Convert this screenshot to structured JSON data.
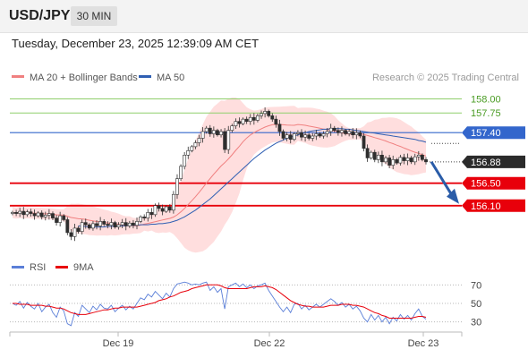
{
  "header": {
    "symbol": "USD/JPY",
    "timeframe": "30 MIN"
  },
  "timestamp": "Tuesday, December 23, 2025 12:39:09 AM CET",
  "credit": "Research © 2025 Trading Central",
  "colors": {
    "candle_up": "#2e2e2e",
    "candle_down": "#2e2e2e",
    "ma20": "#f08080",
    "bollinger_fill": "#ffd6d6",
    "ma50": "#2f5fb3",
    "resistance_green": "#8fcf6b",
    "resistance_blue": "#3366cc",
    "support_red": "#e8000b",
    "arrow": "#2a5ca8",
    "rsi": "#5b7fd8",
    "rsi_ma": "#e8000b",
    "current_price_bg": "#2b2b2b"
  },
  "chart_data": [
    {
      "type": "candlestick",
      "legend": [
        {
          "name": "MA 20 + Bollinger Bands",
          "color": "#f08080"
        },
        {
          "name": "MA 50",
          "color": "#2f5fb3"
        }
      ],
      "x_ticks": [
        "Dec 19",
        "Dec 22",
        "Dec 23"
      ],
      "ylim": [
        155.3,
        158.2
      ],
      "levels": [
        {
          "value": 158.0,
          "label": "158.00",
          "style": "green-line"
        },
        {
          "value": 157.75,
          "label": "157.75",
          "style": "green-line"
        },
        {
          "value": 157.4,
          "label": "157.40",
          "style": "blue-tag"
        },
        {
          "value": 156.88,
          "label": "156.88",
          "style": "current-price-tag"
        },
        {
          "value": 156.5,
          "label": "156.50",
          "style": "red-tag"
        },
        {
          "value": 156.1,
          "label": "156.10",
          "style": "red-tag"
        }
      ],
      "current_price": 156.88,
      "forecast": {
        "direction": "down",
        "from": 156.85,
        "to": 156.1
      },
      "closes": [
        155.98,
        155.96,
        156.0,
        155.94,
        155.99,
        155.96,
        155.92,
        155.97,
        155.9,
        155.93,
        155.96,
        155.88,
        155.8,
        155.92,
        155.85,
        155.62,
        155.55,
        155.7,
        155.64,
        155.8,
        155.76,
        155.7,
        155.78,
        155.74,
        155.82,
        155.77,
        155.75,
        155.8,
        155.72,
        155.76,
        155.8,
        155.74,
        155.79,
        155.75,
        155.82,
        155.9,
        155.88,
        155.98,
        155.94,
        156.1,
        156.05,
        156.0,
        156.08,
        156.02,
        156.3,
        156.58,
        156.8,
        157.0,
        157.08,
        157.15,
        157.22,
        157.3,
        157.42,
        157.48,
        157.38,
        157.44,
        157.36,
        157.42,
        157.1,
        157.44,
        157.52,
        157.6,
        157.56,
        157.64,
        157.6,
        157.67,
        157.62,
        157.7,
        157.74,
        157.78,
        157.7,
        157.64,
        157.55,
        157.42,
        157.3,
        157.36,
        157.28,
        157.38,
        157.4,
        157.32,
        157.36,
        157.3,
        157.34,
        157.38,
        157.34,
        157.38,
        157.42,
        157.48,
        157.44,
        157.4,
        157.44,
        157.38,
        157.42,
        157.36,
        157.4,
        157.34,
        157.12,
        156.95,
        157.05,
        156.92,
        157.0,
        156.88,
        156.95,
        156.82,
        156.92,
        156.86,
        156.96,
        156.9,
        156.95,
        156.88,
        156.97,
        157.0,
        156.92,
        156.88
      ],
      "ma50": [
        155.74,
        155.73,
        155.73,
        155.72,
        155.72,
        155.72,
        155.72,
        155.72,
        155.73,
        155.73,
        155.73,
        155.74,
        155.74,
        155.74,
        155.75,
        155.75,
        155.75,
        155.76,
        155.76,
        155.76,
        155.77,
        155.77,
        155.78,
        155.78,
        155.79,
        155.8,
        155.82,
        155.84,
        155.87,
        155.9,
        155.94,
        155.98,
        156.02,
        156.07,
        156.12,
        156.17,
        156.22,
        156.28,
        156.34,
        156.4,
        156.46,
        156.52,
        156.58,
        156.64,
        156.7,
        156.76,
        156.82,
        156.88,
        156.94,
        156.99,
        157.04,
        157.09,
        157.13,
        157.17,
        157.21,
        157.24,
        157.27,
        157.3,
        157.32,
        157.34,
        157.36,
        157.38,
        157.4,
        157.42,
        157.43,
        157.44,
        157.45,
        157.46,
        157.46,
        157.47,
        157.47,
        157.47,
        157.47,
        157.46,
        157.46,
        157.45,
        157.44,
        157.43,
        157.42,
        157.41,
        157.4,
        157.39,
        157.38,
        157.37,
        157.36,
        157.35,
        157.34,
        157.33,
        157.32,
        157.31,
        157.3,
        157.29,
        157.28,
        157.26,
        157.25,
        157.23
      ]
    },
    {
      "type": "line",
      "legend": [
        {
          "name": "RSI",
          "color": "#5b7fd8"
        },
        {
          "name": "9MA",
          "color": "#e8000b"
        }
      ],
      "ylim": [
        20,
        80
      ],
      "levels": [
        70,
        50,
        30
      ],
      "rsi": [
        50,
        48,
        52,
        45,
        51,
        47,
        44,
        50,
        41,
        46,
        49,
        40,
        35,
        46,
        42,
        28,
        26,
        40,
        36,
        48,
        44,
        40,
        47,
        43,
        49,
        45,
        44,
        48,
        41,
        45,
        48,
        43,
        47,
        44,
        50,
        56,
        54,
        60,
        57,
        63,
        59,
        55,
        61,
        57,
        66,
        71,
        72,
        73,
        72,
        70,
        71,
        70,
        72,
        73,
        64,
        68,
        62,
        66,
        44,
        68,
        70,
        72,
        68,
        71,
        67,
        70,
        66,
        69,
        70,
        72,
        64,
        58,
        52,
        46,
        41,
        46,
        40,
        49,
        50,
        44,
        48,
        43,
        46,
        49,
        46,
        49,
        52,
        55,
        52,
        48,
        51,
        46,
        49,
        44,
        47,
        42,
        34,
        30,
        38,
        32,
        37,
        30,
        35,
        28,
        35,
        31,
        38,
        33,
        37,
        32,
        39,
        44,
        36,
        33
      ],
      "ma9": [
        50,
        50,
        49,
        49,
        49,
        48,
        48,
        48,
        48,
        47,
        47,
        46,
        45,
        45,
        44,
        42,
        40,
        39,
        38,
        38,
        38,
        39,
        40,
        41,
        42,
        43,
        43,
        44,
        45,
        45,
        46,
        46,
        46,
        46,
        46,
        47,
        48,
        49,
        50,
        51,
        53,
        54,
        55,
        57,
        58,
        60,
        62,
        63,
        64,
        66,
        67,
        68,
        69,
        70,
        70,
        70,
        70,
        69,
        67,
        66,
        66,
        66,
        66,
        66,
        66,
        67,
        68,
        68,
        68,
        69,
        68,
        67,
        65,
        62,
        59,
        56,
        53,
        51,
        49,
        48,
        47,
        47,
        46,
        46,
        46,
        46,
        47,
        48,
        48,
        48,
        49,
        49,
        49,
        48,
        48,
        47,
        46,
        44,
        42,
        40,
        39,
        37,
        36,
        34,
        34,
        34,
        34,
        34,
        34,
        34,
        35,
        36,
        36,
        35
      ]
    }
  ]
}
